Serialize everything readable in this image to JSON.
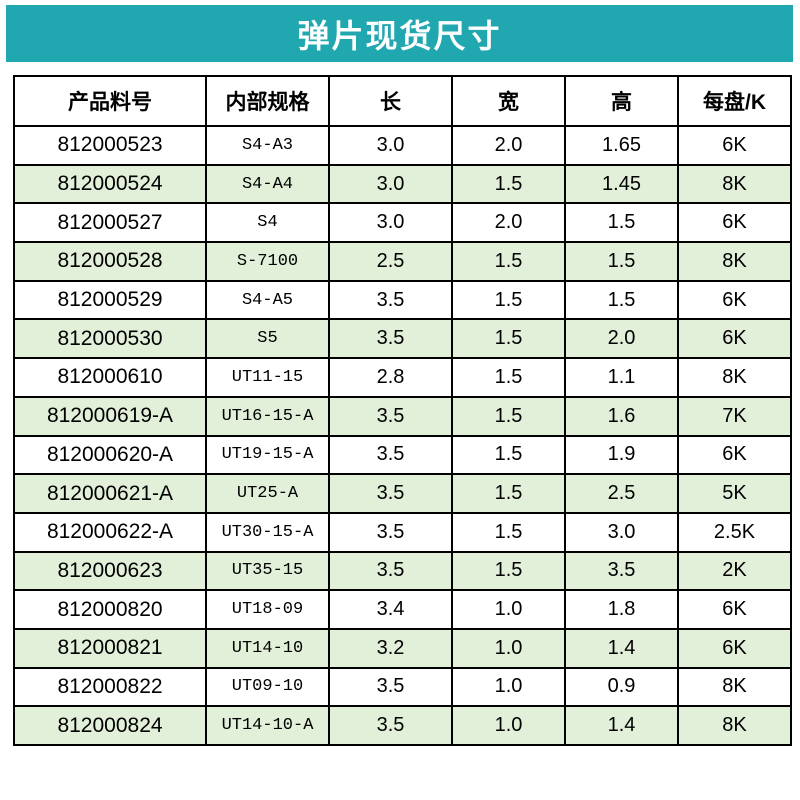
{
  "banner": {
    "title": "弹片现货尺寸"
  },
  "colors": {
    "banner_bg": "#21A7AF",
    "banner_text": "#FFFFFF",
    "row_alt_bg": "#E2EFD9",
    "row_bg": "#FFFFFF",
    "border": "#000000"
  },
  "table": {
    "columns": [
      "产品料号",
      "内部规格",
      "长",
      "宽",
      "高",
      "每盘/K"
    ],
    "column_keys": [
      "part_number",
      "internal_spec",
      "length",
      "width",
      "height",
      "per_reel"
    ],
    "rows": [
      [
        "812000523",
        "S4-A3",
        "3.0",
        "2.0",
        "1.65",
        "6K"
      ],
      [
        "812000524",
        "S4-A4",
        "3.0",
        "1.5",
        "1.45",
        "8K"
      ],
      [
        "812000527",
        "S4",
        "3.0",
        "2.0",
        "1.5",
        "6K"
      ],
      [
        "812000528",
        "S-7100",
        "2.5",
        "1.5",
        "1.5",
        "8K"
      ],
      [
        "812000529",
        "S4-A5",
        "3.5",
        "1.5",
        "1.5",
        "6K"
      ],
      [
        "812000530",
        "S5",
        "3.5",
        "1.5",
        "2.0",
        "6K"
      ],
      [
        "812000610",
        "UT11-15",
        "2.8",
        "1.5",
        "1.1",
        "8K"
      ],
      [
        "812000619-A",
        "UT16-15-A",
        "3.5",
        "1.5",
        "1.6",
        "7K"
      ],
      [
        "812000620-A",
        "UT19-15-A",
        "3.5",
        "1.5",
        "1.9",
        "6K"
      ],
      [
        "812000621-A",
        "UT25-A",
        "3.5",
        "1.5",
        "2.5",
        "5K"
      ],
      [
        "812000622-A",
        "UT30-15-A",
        "3.5",
        "1.5",
        "3.0",
        "2.5K"
      ],
      [
        "812000623",
        "UT35-15",
        "3.5",
        "1.5",
        "3.5",
        "2K"
      ],
      [
        "812000820",
        "UT18-09",
        "3.4",
        "1.0",
        "1.8",
        "6K"
      ],
      [
        "812000821",
        "UT14-10",
        "3.2",
        "1.0",
        "1.4",
        "6K"
      ],
      [
        "812000822",
        "UT09-10",
        "3.5",
        "1.0",
        "0.9",
        "8K"
      ],
      [
        "812000824",
        "UT14-10-A",
        "3.5",
        "1.0",
        "1.4",
        "8K"
      ]
    ]
  }
}
